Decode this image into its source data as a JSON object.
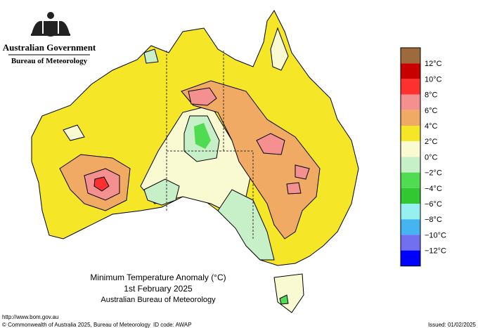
{
  "header": {
    "government": "Australian Government",
    "agency": "Bureau of Meteorology"
  },
  "map": {
    "title": "Minimum Temperature Anomaly (°C)",
    "date": "1st February 2025",
    "source": "Australian Bureau of Meteorology"
  },
  "legend": {
    "colors": [
      "#9c6a3c",
      "#c80000",
      "#ff3030",
      "#f49090",
      "#f0aa64",
      "#f5e628",
      "#fafad2",
      "#c8f0c8",
      "#50dc50",
      "#32c832",
      "#96f0f0",
      "#46b4f0",
      "#7070f0",
      "#0000ff"
    ],
    "labels": [
      "12°C",
      "10°C",
      "8°C",
      "6°C",
      "4°C",
      "2°C",
      "0°C",
      "−2°C",
      "−4°C",
      "−6°C",
      "−8°C",
      "−10°C",
      "−12°C"
    ]
  },
  "footer": {
    "url": "http://www.bom.gov.au",
    "copyright": "© Commonwealth of Australia 2025, Bureau of Meteorology",
    "id_code": "ID code: AWAP",
    "issued": "Issued: 01/02/2025"
  }
}
